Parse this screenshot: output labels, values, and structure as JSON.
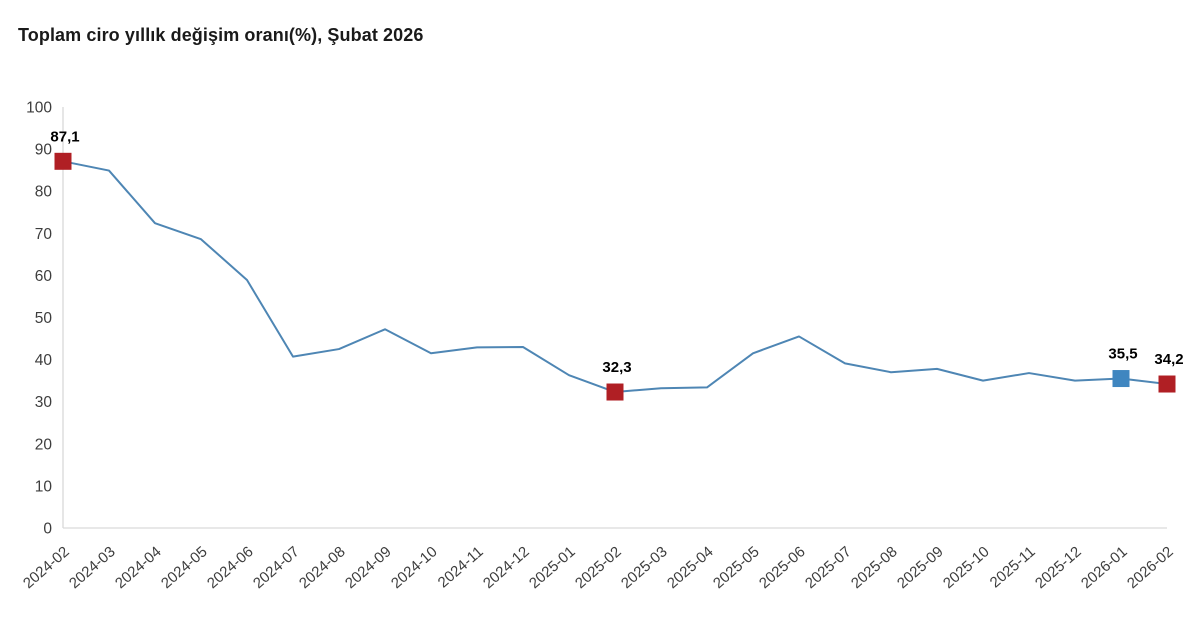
{
  "page": {
    "title": "Toplam ciro yıllık değişim oranı(%), Şubat 2026"
  },
  "chart_data": {
    "type": "line",
    "title": "Toplam ciro yıllık değişim oranı(%), Şubat 2026",
    "xlabel": "",
    "ylabel": "",
    "ylim": [
      0,
      100
    ],
    "yticks": [
      0,
      10,
      20,
      30,
      40,
      50,
      60,
      70,
      80,
      90,
      100
    ],
    "grid": false,
    "legend": false,
    "categories": [
      "2024-02",
      "2024-03",
      "2024-04",
      "2024-05",
      "2024-06",
      "2024-07",
      "2024-08",
      "2024-09",
      "2024-10",
      "2024-11",
      "2024-12",
      "2025-01",
      "2025-02",
      "2025-03",
      "2025-04",
      "2025-05",
      "2025-06",
      "2025-07",
      "2025-08",
      "2025-09",
      "2025-10",
      "2025-11",
      "2025-12",
      "2026-01",
      "2026-02"
    ],
    "values": [
      87.1,
      84.9,
      72.4,
      68.6,
      58.9,
      40.7,
      42.5,
      47.2,
      41.5,
      42.9,
      43.0,
      36.3,
      32.3,
      33.2,
      33.4,
      41.5,
      45.5,
      39.1,
      37.0,
      37.8,
      35.0,
      36.8,
      35.0,
      35.5,
      34.2
    ],
    "line_color": "#4e86b4",
    "annotated_points": [
      {
        "category": "2024-02",
        "value": 87.1,
        "label": "87,1",
        "marker_color": "#b01f24"
      },
      {
        "category": "2025-02",
        "value": 32.3,
        "label": "32,3",
        "marker_color": "#b01f24"
      },
      {
        "category": "2026-01",
        "value": 35.5,
        "label": "35,5",
        "marker_color": "#3f86c0"
      },
      {
        "category": "2026-02",
        "value": 34.2,
        "label": "34,2",
        "marker_color": "#b01f24"
      }
    ],
    "colors": {
      "axis_line": "#d9d9d9",
      "tick_text": "#3d3d3d",
      "annotation_text": "#000000",
      "background": "#ffffff"
    }
  }
}
